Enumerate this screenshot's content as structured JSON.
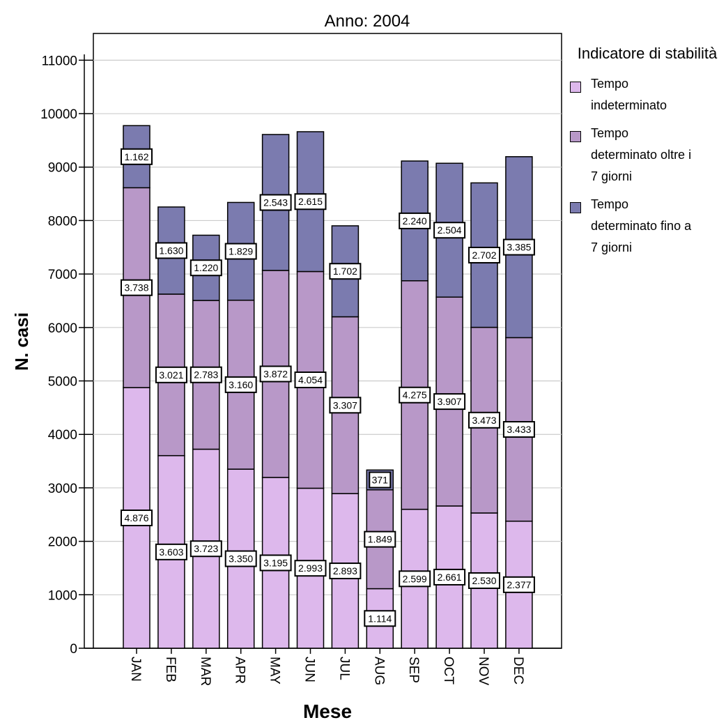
{
  "chart_data": {
    "type": "bar",
    "stacked": true,
    "title": "Anno: 2004",
    "xlabel": "Mese",
    "ylabel": "N. casi",
    "ylim": [
      0,
      11500
    ],
    "yticks": [
      0,
      1000,
      2000,
      3000,
      4000,
      5000,
      6000,
      7000,
      8000,
      9000,
      10000,
      11000
    ],
    "grid": true,
    "legend_position": "right",
    "legend_title": "Indicatore di stabilità",
    "categories": [
      "JAN",
      "FEB",
      "MAR",
      "APR",
      "MAY",
      "JUN",
      "JUL",
      "AUG",
      "SEP",
      "OCT",
      "NOV",
      "DEC"
    ],
    "series": [
      {
        "name": "Tempo indeterminato",
        "legend_label": "Tempo\nindeterminato",
        "color": "#DDB8EC",
        "values": [
          4876,
          3603,
          3723,
          3350,
          3195,
          2993,
          2893,
          1114,
          2599,
          2661,
          2530,
          2377
        ],
        "labels": [
          "4.876",
          "3.603",
          "3.723",
          "3.350",
          "3.195",
          "2.993",
          "2.893",
          "1.114",
          "2.599",
          "2.661",
          "2.530",
          "2.377"
        ]
      },
      {
        "name": "Tempo determinato oltre i 7 giorni",
        "legend_label": "Tempo\ndeterminato oltre i\n7 giorni",
        "color": "#B898C8",
        "values": [
          3738,
          3021,
          2783,
          3160,
          3872,
          4054,
          3307,
          1849,
          4275,
          3907,
          3473,
          3433
        ],
        "labels": [
          "3.738",
          "3.021",
          "2.783",
          "3.160",
          "3.872",
          "4.054",
          "3.307",
          "1.849",
          "4.275",
          "3.907",
          "3.473",
          "3.433"
        ]
      },
      {
        "name": "Tempo determinato fino a 7 giorni",
        "legend_label": "Tempo\ndeterminato fino a\n7 giorni",
        "color": "#7B7BAF",
        "values": [
          1162,
          1630,
          1220,
          1829,
          2543,
          2615,
          1702,
          371,
          2240,
          2504,
          2702,
          3385
        ],
        "labels": [
          "1.162",
          "1.630",
          "1.220",
          "1.829",
          "2.543",
          "2.615",
          "1.702",
          "371",
          "2.240",
          "2.504",
          "2.702",
          "3.385"
        ]
      }
    ]
  }
}
